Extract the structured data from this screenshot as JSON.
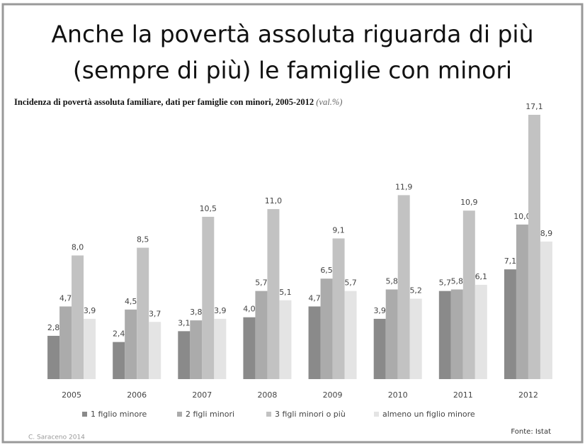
{
  "chart_data": {
    "type": "bar",
    "title": [
      "Anche la povertà assoluta riguarda di più",
      "(sempre di più) le famiglie con minori"
    ],
    "subtitle": "Incidenza di povertà assoluta familiare, dati per famiglie con minori, 2005-2012",
    "subtitle_unit": "(val.%)",
    "categories": [
      "2005",
      "2006",
      "2007",
      "2008",
      "2009",
      "2010",
      "2011",
      "2012"
    ],
    "series": [
      {
        "name": "1 figlio minore",
        "color": "#8a8a8a",
        "values": [
          2.8,
          2.4,
          3.1,
          4.0,
          4.7,
          3.9,
          5.7,
          7.1
        ],
        "value_labels": [
          "2,8",
          "2,4",
          "3,1",
          "4,0",
          "4,7",
          "3,9",
          "5,7",
          "7,1"
        ]
      },
      {
        "name": "2 figli minori",
        "color": "#ababab",
        "values": [
          4.7,
          4.5,
          3.8,
          5.7,
          6.5,
          5.8,
          5.8,
          10.0
        ],
        "value_labels": [
          "4,7",
          "4,5",
          "3,8",
          "5,7",
          "6,5",
          "5,8",
          "5,8",
          "10,0"
        ]
      },
      {
        "name": "3 figli minori o più",
        "color": "#c2c2c2",
        "values": [
          8.0,
          8.5,
          10.5,
          11.0,
          9.1,
          11.9,
          10.9,
          17.1
        ],
        "value_labels": [
          "8,0",
          "8,5",
          "10,5",
          "11,0",
          "9,1",
          "11,9",
          "10,9",
          "17,1"
        ]
      },
      {
        "name": "almeno un figlio minore",
        "color": "#e4e4e4",
        "values": [
          3.9,
          3.7,
          3.9,
          5.1,
          5.7,
          5.2,
          6.1,
          8.9
        ],
        "value_labels": [
          "3,9",
          "3,7",
          "3,9",
          "5,1",
          "5,7",
          "5,2",
          "6,1",
          "8,9"
        ]
      }
    ],
    "source": "Fonte: Istat",
    "credit": "C. Saraceno 2014"
  }
}
